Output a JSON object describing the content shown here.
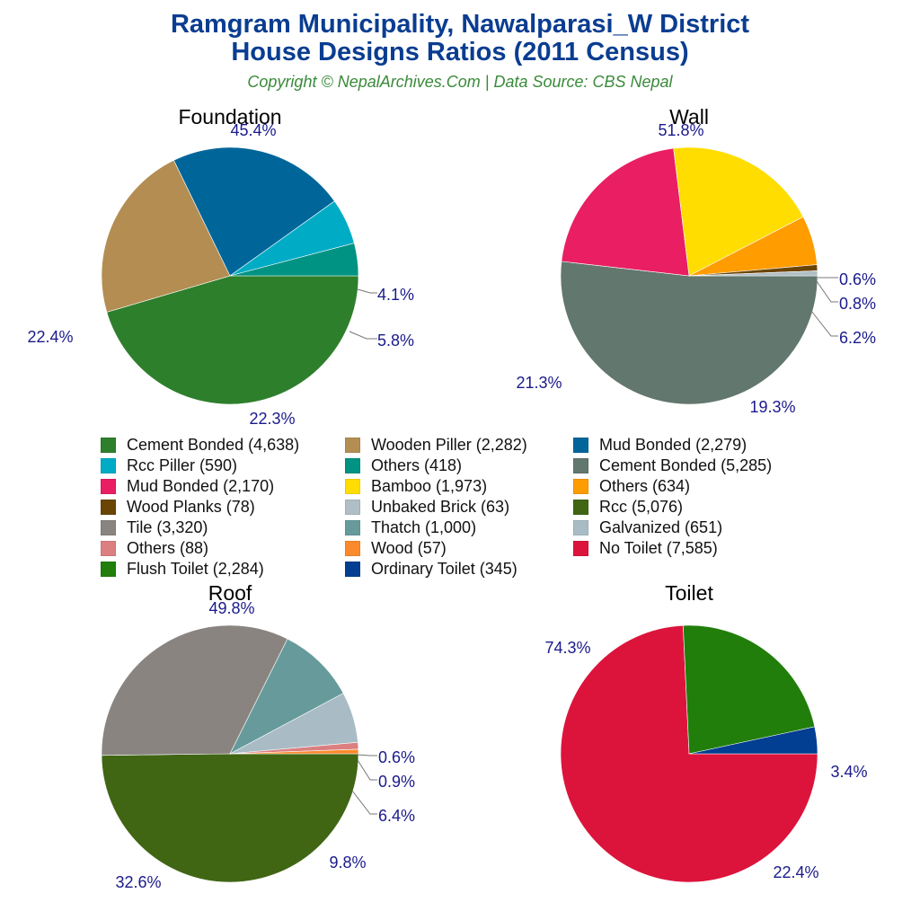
{
  "header": {
    "title_line1": "Ramgram Municipality, Nawalparasi_W District",
    "title_line2": "House Designs Ratios (2011 Census)",
    "subtitle": "Copyright © NepalArchives.Com | Data Source: CBS Nepal"
  },
  "colors": {
    "title": "#0a3d91",
    "subtitle": "#3a8a3a",
    "pct_label": "#1a1a8c"
  },
  "legend": [
    {
      "label": "Cement Bonded (4,638)",
      "color": "#2e7f2c"
    },
    {
      "label": "Wooden Piller (2,282)",
      "color": "#b38d52"
    },
    {
      "label": "Mud Bonded (2,279)",
      "color": "#00669a"
    },
    {
      "label": "Rcc Piller (590)",
      "color": "#00acc5"
    },
    {
      "label": "Others (418)",
      "color": "#009383"
    },
    {
      "label": "Cement Bonded (5,285)",
      "color": "#62776e"
    },
    {
      "label": "Mud Bonded (2,170)",
      "color": "#e91e63"
    },
    {
      "label": "Bamboo (1,973)",
      "color": "#ffdd00"
    },
    {
      "label": "Others (634)",
      "color": "#ff9c00"
    },
    {
      "label": "Wood Planks (78)",
      "color": "#6b4506"
    },
    {
      "label": "Unbaked Brick (63)",
      "color": "#b0bec5"
    },
    {
      "label": "Rcc (5,076)",
      "color": "#406614"
    },
    {
      "label": "Tile (3,320)",
      "color": "#8a8480"
    },
    {
      "label": "Thatch (1,000)",
      "color": "#679b9b"
    },
    {
      "label": "Galvanized (651)",
      "color": "#a9bcc5"
    },
    {
      "label": "Others (88)",
      "color": "#db7f80"
    },
    {
      "label": "Wood (57)",
      "color": "#fb8a2c"
    },
    {
      "label": "No Toilet (7,585)",
      "color": "#dc143c"
    },
    {
      "label": "Flush Toilet (2,284)",
      "color": "#217e0b"
    },
    {
      "label": "Ordinary Toilet (345)",
      "color": "#023e91"
    }
  ],
  "chart_data": [
    {
      "type": "pie",
      "title": "Foundation",
      "categories": [
        "Cement Bonded",
        "Wooden Piller",
        "Mud Bonded",
        "Rcc Piller",
        "Others"
      ],
      "values": [
        4638,
        2282,
        2279,
        590,
        418
      ],
      "percent_labels": [
        "45.4%",
        "22.4%",
        "22.3%",
        "5.8%",
        "4.1%"
      ],
      "colors": [
        "#2e7f2c",
        "#b38d52",
        "#00669a",
        "#00acc5",
        "#009383"
      ]
    },
    {
      "type": "pie",
      "title": "Wall",
      "categories": [
        "Cement Bonded",
        "Mud Bonded",
        "Bamboo",
        "Others",
        "Wood Planks",
        "Unbaked Brick"
      ],
      "values": [
        5285,
        2170,
        1973,
        634,
        78,
        63
      ],
      "percent_labels": [
        "51.8%",
        "21.3%",
        "19.3%",
        "6.2%",
        "0.8%",
        "0.6%"
      ],
      "colors": [
        "#62776e",
        "#e91e63",
        "#ffdd00",
        "#ff9c00",
        "#6b4506",
        "#b0bec5"
      ]
    },
    {
      "type": "pie",
      "title": "Roof",
      "categories": [
        "Rcc",
        "Tile",
        "Thatch",
        "Galvanized",
        "Others",
        "Wood"
      ],
      "values": [
        5076,
        3320,
        1000,
        651,
        88,
        57
      ],
      "percent_labels": [
        "49.8%",
        "32.6%",
        "9.8%",
        "6.4%",
        "0.9%",
        "0.6%"
      ],
      "colors": [
        "#406614",
        "#8a8480",
        "#679b9b",
        "#a9bcc5",
        "#db7f80",
        "#fb8a2c"
      ]
    },
    {
      "type": "pie",
      "title": "Toilet",
      "categories": [
        "No Toilet",
        "Flush Toilet",
        "Ordinary Toilet"
      ],
      "values": [
        7585,
        2284,
        345
      ],
      "percent_labels": [
        "74.3%",
        "22.4%",
        "3.4%"
      ],
      "colors": [
        "#dc143c",
        "#217e0b",
        "#023e91"
      ]
    }
  ]
}
